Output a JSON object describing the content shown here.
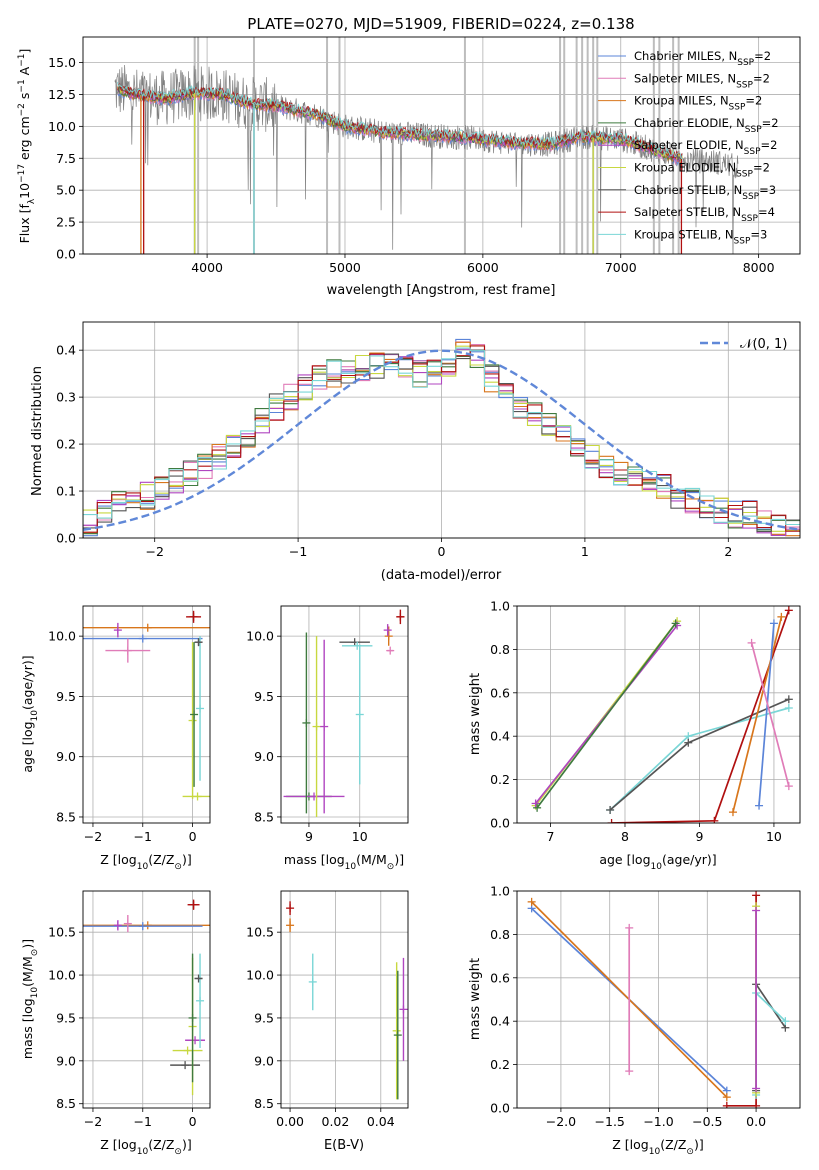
{
  "colors": {
    "chabrier_miles": "#5b84d8",
    "salpeter_miles": "#e07cb8",
    "kroupa_miles": "#d8761c",
    "chabrier_elodie": "#3f7a3f",
    "salpeter_elodie": "#b046c0",
    "kroupa_elodie": "#c8d840",
    "chabrier_stelib": "#555555",
    "salpeter_stelib": "#b01010",
    "kroupa_stelib": "#7ad6d6",
    "data_spectrum": "#7f7f7f",
    "mask": "#bdbdbd",
    "normal": "#6088d8"
  },
  "chart_data": [
    {
      "id": "spectrum",
      "type": "line",
      "title": "PLATE=0270, MJD=51909, FIBERID=0224, z=0.138",
      "xlabel": "wavelength [Angstrom, rest frame]",
      "ylabel": "Flux [f",
      "ylabel_sub": "λ",
      "ylabel_rest": "10",
      "ylabel_exp": "−17",
      "ylabel_unit": " erg cm",
      "ylabel_unit_exp": "−2",
      "ylabel_unit2": " s",
      "ylabel_unit2_exp": "−1",
      "ylabel_unit3": " A",
      "ylabel_unit3_exp": "−1",
      "ylabel_close": "]",
      "xlim": [
        3100,
        8300
      ],
      "ylim": [
        0,
        17
      ],
      "xticks": [
        4000,
        5000,
        6000,
        7000,
        8000
      ],
      "yticks": [
        0.0,
        2.5,
        5.0,
        7.5,
        10.0,
        12.5,
        15.0
      ],
      "legend_position": "right",
      "legend": [
        {
          "main": "Chabrier MILES, N",
          "sub": "SSP",
          "tail": "=2",
          "color_key": "chabrier_miles"
        },
        {
          "main": "Salpeter MILES, N",
          "sub": "SSP",
          "tail": "=2",
          "color_key": "salpeter_miles"
        },
        {
          "main": "Kroupa MILES, N",
          "sub": "SSP",
          "tail": "=2",
          "color_key": "kroupa_miles"
        },
        {
          "main": "Chabrier ELODIE, N",
          "sub": "SSP",
          "tail": "=2",
          "color_key": "chabrier_elodie"
        },
        {
          "main": "Salpeter ELODIE, N",
          "sub": "SSP",
          "tail": "=2",
          "color_key": "salpeter_elodie"
        },
        {
          "main": "Kroupa ELODIE, N",
          "sub": "SSP",
          "tail": "=2",
          "color_key": "kroupa_elodie"
        },
        {
          "main": "Chabrier STELIB, N",
          "sub": "SSP",
          "tail": "=3",
          "color_key": "chabrier_stelib"
        },
        {
          "main": "Salpeter STELIB, N",
          "sub": "SSP",
          "tail": "=4",
          "color_key": "salpeter_stelib"
        },
        {
          "main": "Kroupa STELIB, N",
          "sub": "SSP",
          "tail": "=3",
          "color_key": "kroupa_stelib"
        }
      ],
      "continuum_knots": [
        [
          3350,
          12.9
        ],
        [
          3500,
          12.4
        ],
        [
          3700,
          12.2
        ],
        [
          3900,
          12.6
        ],
        [
          4100,
          12.5
        ],
        [
          4300,
          11.8
        ],
        [
          4500,
          11.6
        ],
        [
          4800,
          10.9
        ],
        [
          5000,
          10.0
        ],
        [
          5300,
          9.5
        ],
        [
          5600,
          9.3
        ],
        [
          5900,
          9.1
        ],
        [
          6200,
          8.7
        ],
        [
          6500,
          8.6
        ],
        [
          6700,
          9.2
        ],
        [
          7000,
          9.0
        ],
        [
          7200,
          8.3
        ],
        [
          7450,
          7.4
        ],
        [
          7700,
          7.2
        ],
        [
          7850,
          6.8
        ]
      ],
      "data_range": [
        3330,
        7850
      ],
      "model_range": [
        3350,
        7450
      ],
      "mask_lines": [
        3910,
        3935,
        4340,
        4870,
        4960,
        5870,
        6560,
        6590,
        6680,
        6720,
        6760,
        6800,
        6830,
        7240,
        7280,
        7380,
        7420
      ],
      "model_drops": [
        {
          "x": 3520,
          "color_key": "kroupa_miles"
        },
        {
          "x": 3540,
          "color_key": "salpeter_stelib"
        },
        {
          "x": 3910,
          "color_key": "kroupa_elodie"
        },
        {
          "x": 4340,
          "color_key": "kroupa_stelib"
        },
        {
          "x": 6800,
          "color_key": "kroupa_elodie"
        },
        {
          "x": 7440,
          "color_key": "salpeter_stelib"
        }
      ]
    },
    {
      "id": "residuals",
      "type": "bar",
      "xlabel": "(data-model)/error",
      "ylabel": "Normed distribution",
      "xlim": [
        -2.5,
        2.5
      ],
      "ylim": [
        0,
        0.46
      ],
      "xticks": [
        -2,
        -1,
        0,
        1,
        2
      ],
      "yticks": [
        0.0,
        0.1,
        0.2,
        0.3,
        0.4
      ],
      "legend_position": "top-right",
      "legend_label": "𝒩(0, 1)",
      "bin_edges_start": -2.5,
      "bin_width": 0.1,
      "series_base": [
        0.03,
        0.06,
        0.08,
        0.09,
        0.09,
        0.1,
        0.12,
        0.14,
        0.15,
        0.17,
        0.19,
        0.22,
        0.25,
        0.28,
        0.3,
        0.32,
        0.34,
        0.35,
        0.36,
        0.36,
        0.37,
        0.37,
        0.36,
        0.35,
        0.35,
        0.37,
        0.4,
        0.39,
        0.34,
        0.31,
        0.28,
        0.26,
        0.24,
        0.22,
        0.19,
        0.17,
        0.15,
        0.14,
        0.13,
        0.12,
        0.11,
        0.09,
        0.08,
        0.07,
        0.06,
        0.05,
        0.05,
        0.04,
        0.03,
        0.02
      ]
    },
    {
      "id": "age_vs_Z",
      "type": "scatter",
      "xlabel": "Z [log",
      "xlabel_sub": "10",
      "xlabel_rest": "(Z/Z",
      "xlabel_sub2": "⊙",
      "xlabel_close": ")]",
      "ylabel": "age  [log",
      "ylabel_sub": "10",
      "ylabel_rest": "(age/yr)]",
      "xlim": [
        -2.2,
        0.35
      ],
      "ylim": [
        8.45,
        10.25
      ],
      "xticks": [
        -2,
        -1,
        0
      ],
      "yticks": [
        8.5,
        9.0,
        9.5,
        10.0
      ],
      "points": [
        {
          "x": -0.9,
          "y": 10.07,
          "xerr": 1.3,
          "yerr": 0.0,
          "color_key": "kroupa_miles"
        },
        {
          "x": -1.0,
          "y": 9.98,
          "xerr": 1.2,
          "yerr": 0.0,
          "color_key": "chabrier_miles"
        },
        {
          "x": -1.3,
          "y": 9.88,
          "xerr": 0.45,
          "yerr": 0.1,
          "color_key": "salpeter_miles"
        },
        {
          "x": -1.5,
          "y": 10.05,
          "xerr": 0.0,
          "yerr": 0.06,
          "color_key": "salpeter_elodie"
        },
        {
          "x": 0.1,
          "y": 8.67,
          "xerr": 0.3,
          "yerr": 0.0,
          "color_key": "kroupa_elodie"
        },
        {
          "x": 0.15,
          "y": 9.4,
          "xerr": 0.0,
          "yerr": 0.6,
          "color_key": "kroupa_stelib"
        },
        {
          "x": 0.12,
          "y": 9.95,
          "xerr": 0.08,
          "yerr": 0.03,
          "color_key": "chabrier_stelib"
        },
        {
          "x": 0.02,
          "y": 10.16,
          "xerr": 0.15,
          "yerr": 0.05,
          "color_key": "salpeter_stelib"
        },
        {
          "x": 0.0,
          "y": 9.3,
          "xerr": 0.0,
          "yerr": 0.65,
          "color_key": "kroupa_elodie"
        },
        {
          "x": 0.03,
          "y": 9.35,
          "xerr": 0.0,
          "yerr": 0.6,
          "color_key": "chabrier_elodie"
        }
      ]
    },
    {
      "id": "age_vs_mass",
      "type": "scatter",
      "xlabel": "mass [log",
      "xlabel_sub": "10",
      "xlabel_rest": "(M/M",
      "xlabel_sub2": "⊙",
      "xlabel_close": ")]",
      "xlim": [
        8.45,
        10.95
      ],
      "ylim": [
        8.45,
        10.25
      ],
      "xticks": [
        9,
        10
      ],
      "yticks": [
        8.5,
        9.0,
        9.5,
        10.0
      ],
      "points": [
        {
          "x": 9.0,
          "y": 8.67,
          "xerr": 0.45,
          "yerr": 0.0,
          "color_key": "chabrier_elodie"
        },
        {
          "x": 9.1,
          "y": 8.67,
          "xerr": 0.6,
          "yerr": 0.0,
          "color_key": "salpeter_elodie"
        },
        {
          "x": 8.95,
          "y": 9.28,
          "xerr": 0.0,
          "yerr": 0.75,
          "color_key": "chabrier_elodie"
        },
        {
          "x": 9.15,
          "y": 9.25,
          "xerr": 0.0,
          "yerr": 0.75,
          "color_key": "kroupa_elodie"
        },
        {
          "x": 9.3,
          "y": 9.25,
          "xerr": 0.0,
          "yerr": 0.72,
          "color_key": "salpeter_elodie"
        },
        {
          "x": 9.9,
          "y": 9.95,
          "xerr": 0.3,
          "yerr": 0.0,
          "color_key": "chabrier_stelib"
        },
        {
          "x": 9.95,
          "y": 9.92,
          "xerr": 0.3,
          "yerr": 0.0,
          "color_key": "kroupa_stelib"
        },
        {
          "x": 10.0,
          "y": 9.35,
          "xerr": 0.0,
          "yerr": 0.58,
          "color_key": "kroupa_stelib"
        },
        {
          "x": 10.57,
          "y": 10.0,
          "xerr": 0.0,
          "yerr": 0.08,
          "color_key": "kroupa_miles"
        },
        {
          "x": 10.6,
          "y": 9.88,
          "xerr": 0.06,
          "yerr": 0.0,
          "color_key": "salpeter_miles"
        },
        {
          "x": 10.55,
          "y": 10.05,
          "xerr": 0.0,
          "yerr": 0.05,
          "color_key": "salpeter_elodie"
        },
        {
          "x": 10.8,
          "y": 10.16,
          "xerr": 0.08,
          "yerr": 0.06,
          "color_key": "salpeter_stelib"
        }
      ]
    },
    {
      "id": "weight_vs_age",
      "type": "line",
      "xlabel": "age  [log",
      "xlabel_sub": "10",
      "xlabel_rest": "(age/yr)]",
      "ylabel": "mass weight",
      "xlim": [
        6.55,
        10.35
      ],
      "ylim": [
        0,
        1
      ],
      "xticks": [
        7,
        8,
        9,
        10
      ],
      "yticks": [
        0.0,
        0.2,
        0.4,
        0.6,
        0.8,
        1.0
      ],
      "series": [
        {
          "color_key": "kroupa_elodie",
          "x": [
            6.8,
            8.7
          ],
          "y": [
            0.08,
            0.93
          ]
        },
        {
          "color_key": "salpeter_elodie",
          "x": [
            6.8,
            8.7
          ],
          "y": [
            0.09,
            0.91
          ]
        },
        {
          "color_key": "chabrier_elodie",
          "x": [
            6.82,
            8.68
          ],
          "y": [
            0.07,
            0.92
          ]
        },
        {
          "color_key": "kroupa_stelib",
          "x": [
            7.8,
            8.85,
            10.2
          ],
          "y": [
            0.06,
            0.4,
            0.53
          ]
        },
        {
          "color_key": "chabrier_stelib",
          "x": [
            7.8,
            8.85,
            10.2
          ],
          "y": [
            0.06,
            0.37,
            0.57
          ]
        },
        {
          "color_key": "salpeter_stelib",
          "x": [
            7.82,
            9.2,
            10.2
          ],
          "y": [
            0.0,
            0.01,
            0.98
          ]
        },
        {
          "color_key": "kroupa_miles",
          "x": [
            9.45,
            10.1
          ],
          "y": [
            0.05,
            0.95
          ]
        },
        {
          "color_key": "chabrier_miles",
          "x": [
            9.8,
            10.0
          ],
          "y": [
            0.08,
            0.92
          ]
        },
        {
          "color_key": "salpeter_miles",
          "x": [
            9.7,
            10.2
          ],
          "y": [
            0.83,
            0.17
          ]
        }
      ]
    },
    {
      "id": "mass_vs_Z",
      "type": "scatter",
      "xlabel": "Z [log",
      "xlabel_sub": "10",
      "xlabel_rest": "(Z/Z",
      "xlabel_sub2": "⊙",
      "xlabel_close": ")]",
      "ylabel": "mass [log",
      "ylabel_sub": "10",
      "ylabel_rest": "(M/M",
      "ylabel_sub2": "⊙",
      "ylabel_close": ")]",
      "xlim": [
        -2.2,
        0.35
      ],
      "ylim": [
        8.45,
        10.98
      ],
      "xticks": [
        -2,
        -1,
        0
      ],
      "yticks": [
        8.5,
        9.0,
        9.5,
        10.0,
        10.5
      ],
      "points": [
        {
          "x": -0.9,
          "y": 10.58,
          "xerr": 1.3,
          "yerr": 0.0,
          "color_key": "kroupa_miles"
        },
        {
          "x": -1.0,
          "y": 10.57,
          "xerr": 1.2,
          "yerr": 0.0,
          "color_key": "chabrier_miles"
        },
        {
          "x": -1.3,
          "y": 10.6,
          "xerr": 0.0,
          "yerr": 0.1,
          "color_key": "salpeter_miles"
        },
        {
          "x": -1.5,
          "y": 10.58,
          "xerr": 0.0,
          "yerr": 0.06,
          "color_key": "salpeter_elodie"
        },
        {
          "x": 0.05,
          "y": 9.24,
          "xerr": 0.2,
          "yerr": 0.0,
          "color_key": "salpeter_elodie"
        },
        {
          "x": -0.1,
          "y": 9.12,
          "xerr": 0.3,
          "yerr": 0.0,
          "color_key": "kroupa_elodie"
        },
        {
          "x": -0.15,
          "y": 8.95,
          "xerr": 0.3,
          "yerr": 0.0,
          "color_key": "chabrier_stelib"
        },
        {
          "x": 0.0,
          "y": 9.4,
          "xerr": 0.0,
          "yerr": 0.8,
          "color_key": "kroupa_elodie"
        },
        {
          "x": 0.0,
          "y": 9.5,
          "xerr": 0.0,
          "yerr": 0.75,
          "color_key": "chabrier_elodie"
        },
        {
          "x": 0.15,
          "y": 9.7,
          "xerr": 0.0,
          "yerr": 0.55,
          "color_key": "kroupa_stelib"
        },
        {
          "x": 0.12,
          "y": 9.96,
          "xerr": 0.08,
          "yerr": 0.0,
          "color_key": "chabrier_stelib"
        },
        {
          "x": 0.02,
          "y": 10.82,
          "xerr": 0.12,
          "yerr": 0.06,
          "color_key": "salpeter_stelib"
        }
      ]
    },
    {
      "id": "mass_vs_ebv",
      "type": "scatter",
      "xlabel": "E(B-V)",
      "xlim": [
        -0.004,
        0.052
      ],
      "ylim": [
        8.45,
        10.98
      ],
      "xticks": [
        0.0,
        0.02,
        0.04
      ],
      "yticks": [
        8.5,
        9.0,
        9.5,
        10.0,
        10.5
      ],
      "points": [
        {
          "x": 0.0,
          "y": 10.58,
          "xerr": 0.0,
          "yerr": 0.08,
          "color_key": "kroupa_miles"
        },
        {
          "x": 0.0,
          "y": 10.78,
          "xerr": 0.0,
          "yerr": 0.08,
          "color_key": "salpeter_stelib"
        },
        {
          "x": 0.01,
          "y": 9.92,
          "xerr": 0.0,
          "yerr": 0.33,
          "color_key": "kroupa_stelib"
        },
        {
          "x": 0.047,
          "y": 9.35,
          "xerr": 0.0,
          "yerr": 0.8,
          "color_key": "kroupa_elodie"
        },
        {
          "x": 0.0475,
          "y": 9.3,
          "xerr": 0.0,
          "yerr": 0.75,
          "color_key": "chabrier_elodie"
        },
        {
          "x": 0.05,
          "y": 9.6,
          "xerr": 0.0,
          "yerr": 0.6,
          "color_key": "salpeter_elodie"
        }
      ]
    },
    {
      "id": "weight_vs_Z",
      "type": "line",
      "xlabel": "Z [log",
      "xlabel_sub": "10",
      "xlabel_rest": "(Z/Z",
      "xlabel_sub2": "⊙",
      "xlabel_close": ")]",
      "ylabel": "mass weight",
      "xlim": [
        -2.45,
        0.45
      ],
      "ylim": [
        0,
        1
      ],
      "xticks": [
        -2.0,
        -1.5,
        -1.0,
        -0.5,
        0.0
      ],
      "yticks": [
        0.0,
        0.2,
        0.4,
        0.6,
        0.8,
        1.0
      ],
      "series": [
        {
          "color_key": "chabrier_miles",
          "x": [
            -2.3,
            -0.3
          ],
          "y": [
            0.92,
            0.08
          ]
        },
        {
          "color_key": "kroupa_miles",
          "x": [
            -2.3,
            -0.3
          ],
          "y": [
            0.95,
            0.05
          ]
        },
        {
          "color_key": "salpeter_miles",
          "x": [
            -1.3,
            -1.3
          ],
          "y": [
            0.83,
            0.17
          ]
        },
        {
          "color_key": "salpeter_stelib",
          "x": [
            -0.3,
            0.0,
            0.0
          ],
          "y": [
            0.01,
            0.01,
            0.98
          ]
        },
        {
          "color_key": "chabrier_stelib",
          "x": [
            0.0,
            0.0,
            0.3
          ],
          "y": [
            0.08,
            0.57,
            0.37
          ]
        },
        {
          "color_key": "kroupa_stelib",
          "x": [
            0.0,
            0.0,
            0.3
          ],
          "y": [
            0.06,
            0.53,
            0.4
          ]
        },
        {
          "color_key": "kroupa_elodie",
          "x": [
            0.0,
            0.0
          ],
          "y": [
            0.07,
            0.93
          ]
        },
        {
          "color_key": "salpeter_elodie",
          "x": [
            0.0,
            0.0
          ],
          "y": [
            0.09,
            0.91
          ]
        }
      ]
    }
  ]
}
